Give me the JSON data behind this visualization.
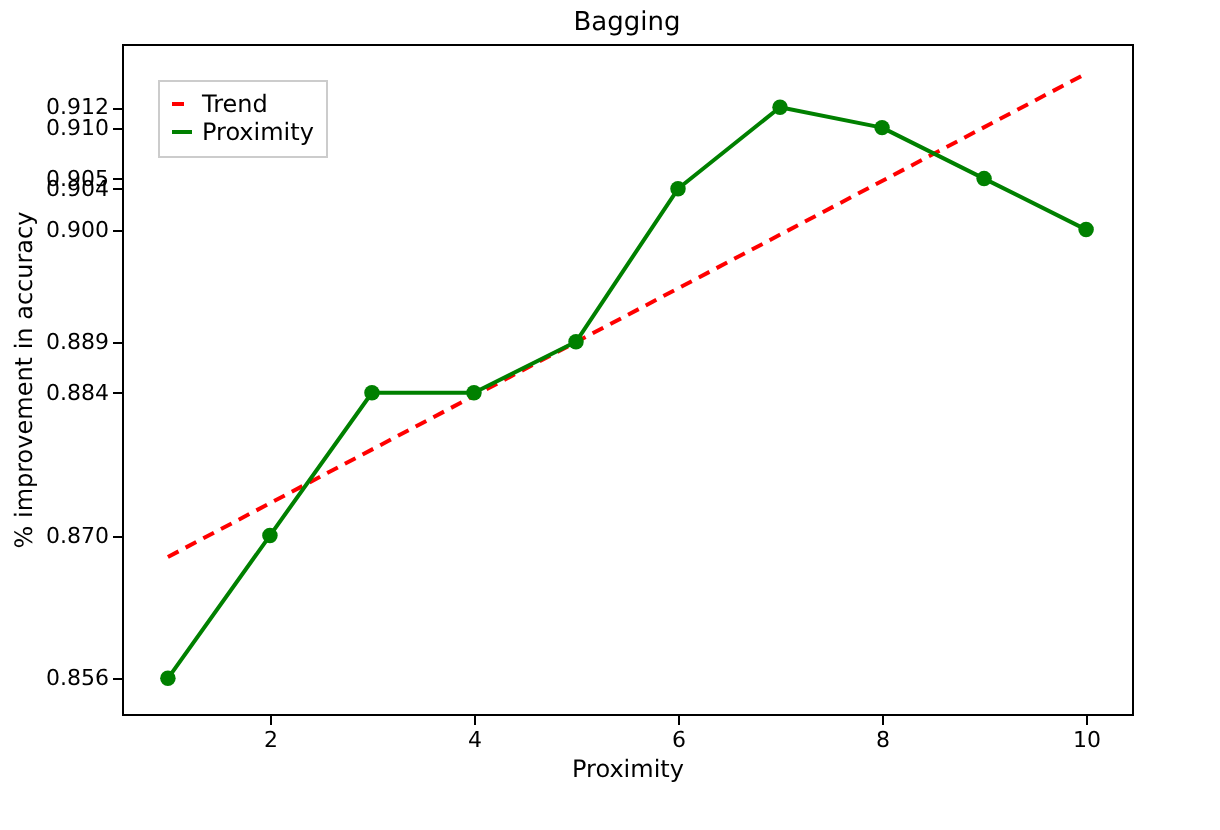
{
  "chart_data": {
    "type": "line",
    "title": "Bagging",
    "xlabel": "Proximity",
    "ylabel": "% improvement in accuracy",
    "x": [
      1,
      2,
      3,
      4,
      5,
      6,
      7,
      8,
      9,
      10
    ],
    "series": [
      {
        "name": "Trend",
        "color": "#ff0000",
        "line_style": "dashed",
        "marker": "none",
        "x": [
          1,
          10
        ],
        "values": [
          0.8679,
          0.9153
        ]
      },
      {
        "name": "Proximity",
        "color": "#008000",
        "line_style": "solid",
        "marker": "circle",
        "values": [
          0.856,
          0.87,
          0.884,
          0.884,
          0.889,
          0.904,
          0.912,
          0.91,
          0.905,
          0.9
        ]
      }
    ],
    "xlim": [
      0.55,
      10.45
    ],
    "xticks": [
      2,
      4,
      6,
      8,
      10
    ],
    "ylim": [
      0.8525,
      0.9182
    ],
    "yticks": [
      0.856,
      {
        "value": 0.87,
        "label": "0.870"
      },
      0.884,
      0.889,
      {
        "value": 0.9,
        "label": "0.900"
      },
      0.904,
      0.905,
      {
        "value": 0.91,
        "label": "0.910"
      },
      0.912
    ],
    "grid": false,
    "legend": "top left"
  }
}
